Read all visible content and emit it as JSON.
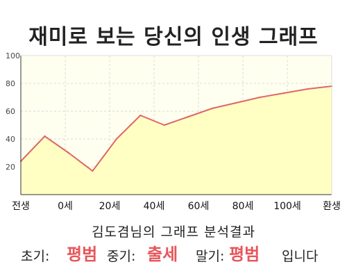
{
  "chart_data": {
    "type": "area",
    "title": "재미로 보는 당신의 인생 그래프",
    "x": [
      0,
      1,
      2,
      3,
      4,
      5,
      6,
      7,
      8,
      9,
      10,
      11,
      12,
      13
    ],
    "values": [
      24,
      42,
      30,
      17,
      40,
      57,
      50,
      56,
      62,
      66,
      70,
      73,
      76,
      78
    ],
    "x_tick_labels": [
      "전생",
      "0세",
      "20세",
      "40세",
      "60세",
      "80세",
      "100세",
      "환생"
    ],
    "y_ticks": [
      20,
      40,
      60,
      80,
      100
    ],
    "ylim": [
      0,
      100
    ],
    "grid": true,
    "line_color": "#e06666",
    "fill_color": "#ffffc0",
    "plot_background": "#fffff0"
  },
  "result": {
    "subtitle": "김도겸님의 그래프 분석결과",
    "early_label": "초기:",
    "early_value": "평범",
    "middle_label": "중기:",
    "middle_value": "출세",
    "late_label": "말기:",
    "late_value": "평범",
    "ending": "입니다"
  }
}
